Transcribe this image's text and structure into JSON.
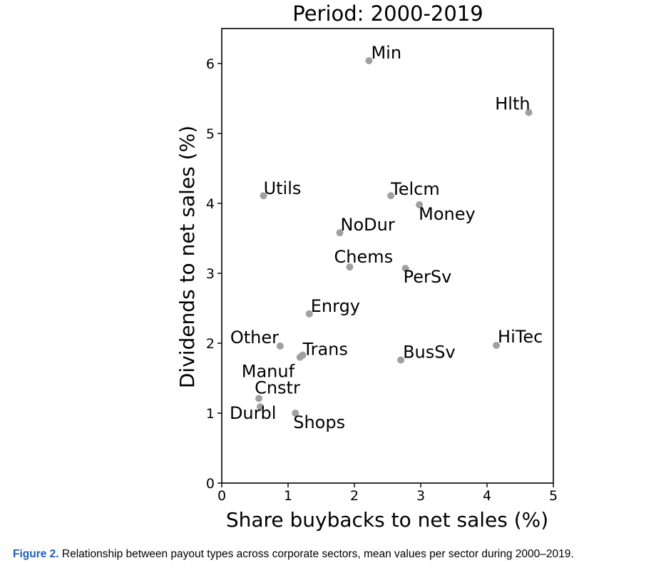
{
  "chart_data": {
    "type": "scatter",
    "title": "Period: 2000-2019",
    "xlabel": "Share buybacks to net sales (%)",
    "ylabel": "Dividends to net sales (%)",
    "xlim": [
      0,
      5
    ],
    "ylim": [
      0,
      6.5
    ],
    "xticks": [
      0,
      1,
      2,
      3,
      4,
      5
    ],
    "yticks": [
      0,
      1,
      2,
      3,
      4,
      5,
      6
    ],
    "point_color": "#a0a0a0",
    "grid": false,
    "legend": "none",
    "points": [
      {
        "label": "Min",
        "x": 2.22,
        "y": 6.04
      },
      {
        "label": "Hlth",
        "x": 4.63,
        "y": 5.3
      },
      {
        "label": "Utils",
        "x": 0.63,
        "y": 4.11
      },
      {
        "label": "Telcm",
        "x": 2.55,
        "y": 4.11
      },
      {
        "label": "Money",
        "x": 2.98,
        "y": 3.98
      },
      {
        "label": "NoDur",
        "x": 1.78,
        "y": 3.58
      },
      {
        "label": "Chems",
        "x": 1.93,
        "y": 3.09
      },
      {
        "label": "PerSv",
        "x": 2.77,
        "y": 3.07
      },
      {
        "label": "Enrgy",
        "x": 1.32,
        "y": 2.42
      },
      {
        "label": "Other",
        "x": 0.88,
        "y": 1.96
      },
      {
        "label": "Trans",
        "x": 1.22,
        "y": 1.83
      },
      {
        "label": "Manuf",
        "x": 1.18,
        "y": 1.8
      },
      {
        "label": "BusSv",
        "x": 2.7,
        "y": 1.76
      },
      {
        "label": "HiTec",
        "x": 4.14,
        "y": 1.97
      },
      {
        "label": "Cnstr",
        "x": 0.56,
        "y": 1.21
      },
      {
        "label": "Durbl",
        "x": 0.58,
        "y": 1.09
      },
      {
        "label": "Shops",
        "x": 1.11,
        "y": 1.0
      }
    ]
  },
  "caption": {
    "figure_label": "Figure 2.",
    "text": " Relationship between payout types across corporate sectors, mean values per sector during 2000–2019."
  }
}
